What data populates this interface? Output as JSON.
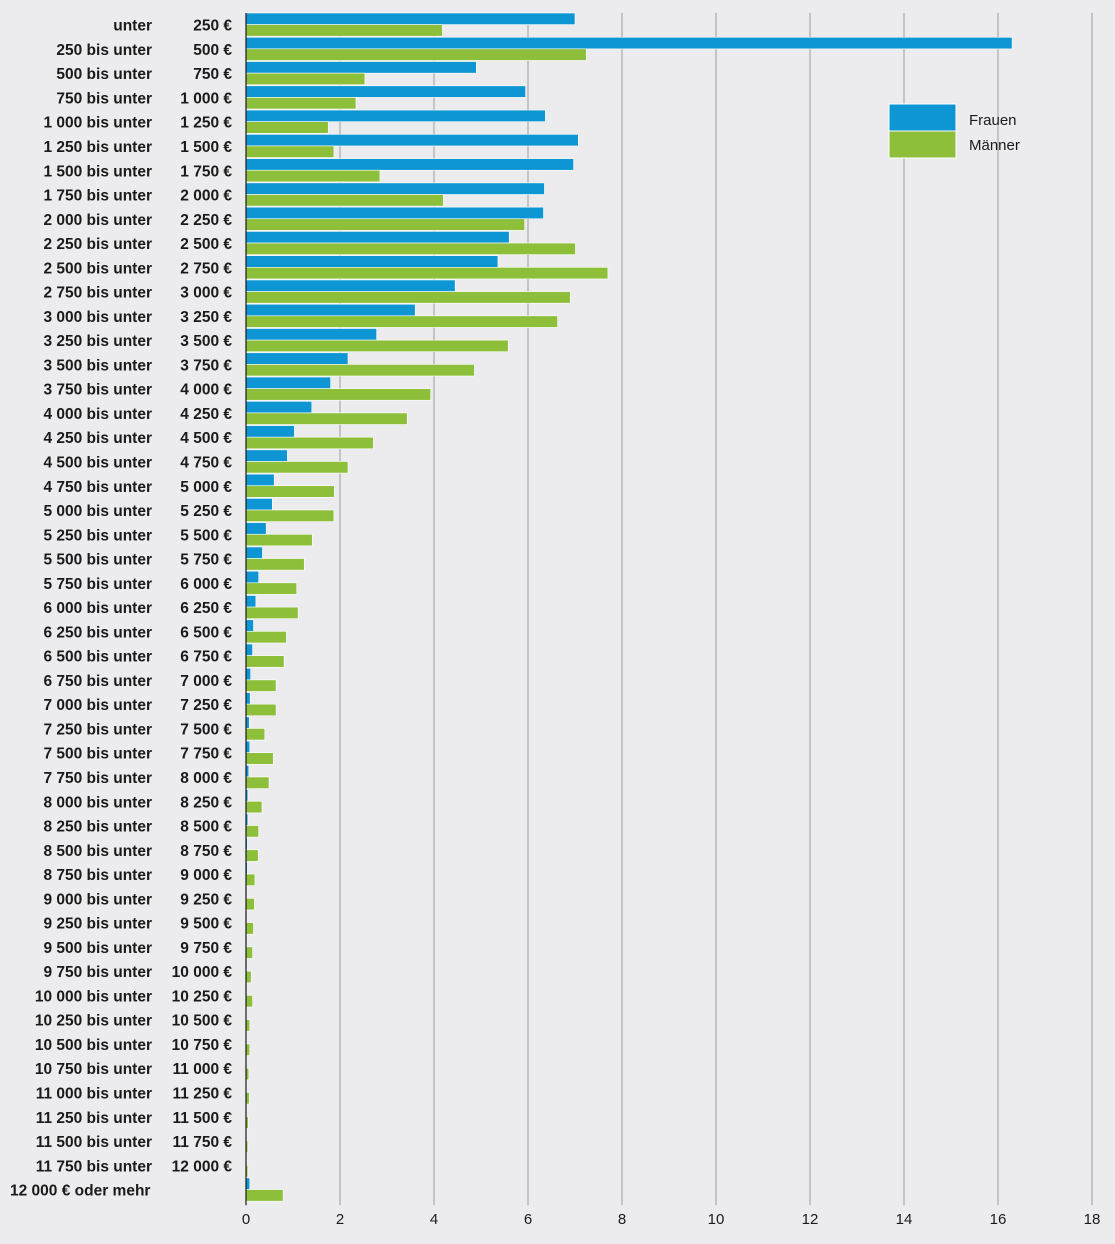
{
  "chart_data": {
    "type": "bar",
    "orientation": "horizontal",
    "categories": [
      [
        "unter",
        "250 €"
      ],
      [
        "250 bis unter",
        "500 €"
      ],
      [
        "500 bis unter",
        "750 €"
      ],
      [
        "750 bis unter",
        "1 000 €"
      ],
      [
        "1 000 bis unter",
        "1 250 €"
      ],
      [
        "1 250 bis unter",
        "1 500 €"
      ],
      [
        "1 500 bis unter",
        "1 750 €"
      ],
      [
        "1 750 bis unter",
        "2 000 €"
      ],
      [
        "2 000 bis unter",
        "2 250 €"
      ],
      [
        "2 250 bis unter",
        "2 500 €"
      ],
      [
        "2 500 bis unter",
        "2 750 €"
      ],
      [
        "2 750 bis unter",
        "3 000 €"
      ],
      [
        "3 000 bis unter",
        "3 250 €"
      ],
      [
        "3 250 bis unter",
        "3 500 €"
      ],
      [
        "3 500 bis unter",
        "3 750 €"
      ],
      [
        "3 750 bis unter",
        "4 000 €"
      ],
      [
        "4 000 bis unter",
        "4 250 €"
      ],
      [
        "4 250 bis unter",
        "4 500 €"
      ],
      [
        "4 500 bis unter",
        "4 750 €"
      ],
      [
        "4 750 bis unter",
        "5 000 €"
      ],
      [
        "5 000 bis unter",
        "5 250 €"
      ],
      [
        "5 250 bis unter",
        "5 500 €"
      ],
      [
        "5 500 bis unter",
        "5 750 €"
      ],
      [
        "5 750 bis unter",
        "6 000 €"
      ],
      [
        "6 000 bis unter",
        "6 250 €"
      ],
      [
        "6 250 bis unter",
        "6 500 €"
      ],
      [
        "6 500 bis unter",
        "6 750 €"
      ],
      [
        "6 750 bis unter",
        "7 000 €"
      ],
      [
        "7 000 bis unter",
        "7 250 €"
      ],
      [
        "7 250 bis unter",
        "7 500 €"
      ],
      [
        "7 500 bis unter",
        "7 750 €"
      ],
      [
        "7 750 bis unter",
        "8 000 €"
      ],
      [
        "8 000 bis unter",
        "8 250 €"
      ],
      [
        "8 250 bis unter",
        "8 500 €"
      ],
      [
        "8 500 bis unter",
        "8 750 €"
      ],
      [
        "8 750 bis unter",
        "9 000 €"
      ],
      [
        "9 000 bis unter",
        "9 250 €"
      ],
      [
        "9 250 bis unter",
        "9 500 €"
      ],
      [
        "9 500 bis unter",
        "9 750 €"
      ],
      [
        "9 750 bis unter",
        "10 000 €"
      ],
      [
        "10 000 bis unter",
        "10 250 €"
      ],
      [
        "10 250 bis unter",
        "10 500 €"
      ],
      [
        "10 500 bis unter",
        "10 750 €"
      ],
      [
        "10 750 bis unter",
        "11 000 €"
      ],
      [
        "11 000 bis unter",
        "11 250 €"
      ],
      [
        "11 250 bis unter",
        "11 500 €"
      ],
      [
        "11 500 bis unter",
        "11 750 €"
      ],
      [
        "11 750 bis unter",
        "12 000 €"
      ],
      [
        "12 000 € oder mehr",
        ""
      ]
    ],
    "series": [
      {
        "name": "Frauen",
        "color": "#0d96d3",
        "values": [
          7.0,
          16.3,
          4.9,
          5.95,
          6.37,
          7.07,
          6.97,
          6.35,
          6.33,
          5.6,
          5.36,
          4.45,
          3.6,
          2.78,
          2.17,
          1.8,
          1.4,
          1.03,
          0.88,
          0.6,
          0.56,
          0.43,
          0.35,
          0.27,
          0.21,
          0.16,
          0.14,
          0.1,
          0.09,
          0.07,
          0.08,
          0.06,
          0.04,
          0.04,
          0.03,
          0.03,
          0.02,
          0.02,
          0.02,
          0.02,
          0.02,
          0.01,
          0.01,
          0.01,
          0.01,
          0.01,
          0.01,
          0.01,
          0.08
        ]
      },
      {
        "name": "Männer",
        "color": "#8dbf3b",
        "values": [
          4.18,
          7.24,
          2.53,
          2.34,
          1.75,
          1.87,
          2.85,
          4.2,
          5.93,
          7.01,
          7.7,
          6.9,
          6.63,
          5.58,
          4.86,
          3.93,
          3.43,
          2.71,
          2.17,
          1.88,
          1.87,
          1.41,
          1.24,
          1.08,
          1.11,
          0.86,
          0.81,
          0.64,
          0.64,
          0.4,
          0.58,
          0.49,
          0.34,
          0.27,
          0.26,
          0.19,
          0.18,
          0.16,
          0.14,
          0.11,
          0.14,
          0.08,
          0.08,
          0.06,
          0.07,
          0.05,
          0.04,
          0.04,
          0.79
        ]
      }
    ],
    "xlim": [
      0,
      18
    ],
    "xticks": [
      0,
      2,
      4,
      6,
      8,
      10,
      12,
      14,
      16,
      18
    ],
    "grid": "vertical",
    "legend_placement": "top-right",
    "title": "",
    "xlabel": "",
    "ylabel": ""
  }
}
